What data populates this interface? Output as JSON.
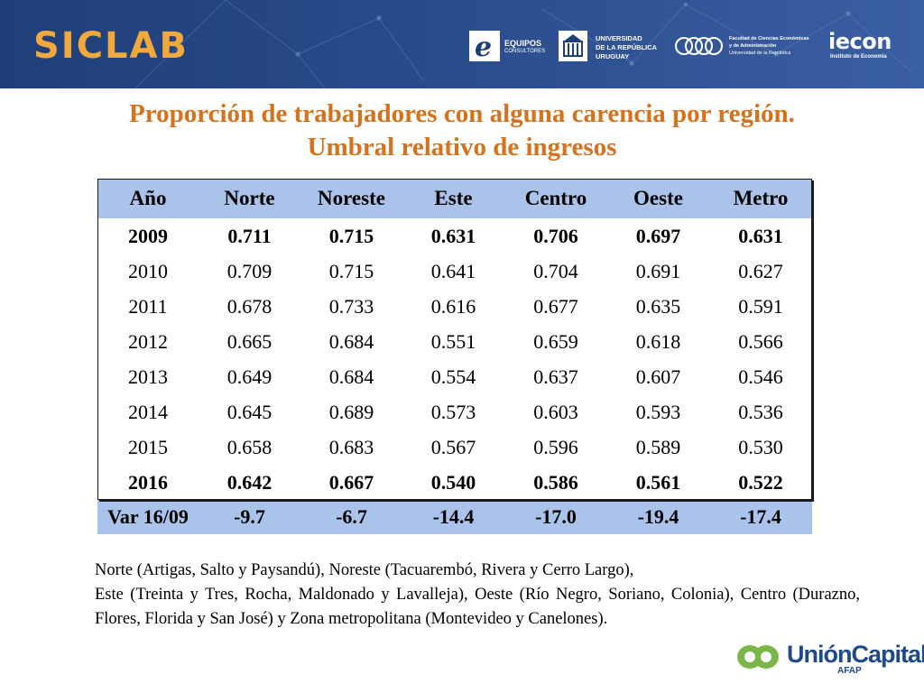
{
  "header": {
    "brand": "SICLAB",
    "logos": [
      {
        "icon": "equipos-logo-icon",
        "line1": "EQUIPOS",
        "line2": "CONSULTORES"
      },
      {
        "icon": "udelar-crest-icon",
        "line1": "UNIVERSIDAD",
        "line2": "DE LA REPÚBLICA",
        "line3": "URUGUAY"
      },
      {
        "icon": "fcea-circles-icon",
        "line1": "Facultad de Ciencias Económicas",
        "line2": "y de Administración",
        "line3": "Universidad de la República"
      },
      {
        "icon": "iecon-logo-icon",
        "line1": "iecon",
        "line2": "Instituto de Economía"
      }
    ]
  },
  "title": {
    "line1": "Proporción de trabajadores con alguna carencia por región.",
    "line2": "Umbral relativo de ingresos"
  },
  "table": {
    "columns": [
      "Año",
      "Norte",
      "Noreste",
      "Este",
      "Centro",
      "Oeste",
      "Metro"
    ],
    "rows": [
      [
        "2009",
        "0.711",
        "0.715",
        "0.631",
        "0.706",
        "0.697",
        "0.631"
      ],
      [
        "2010",
        "0.709",
        "0.715",
        "0.641",
        "0.704",
        "0.691",
        "0.627"
      ],
      [
        "2011",
        "0.678",
        "0.733",
        "0.616",
        "0.677",
        "0.635",
        "0.591"
      ],
      [
        "2012",
        "0.665",
        "0.684",
        "0.551",
        "0.659",
        "0.618",
        "0.566"
      ],
      [
        "2013",
        "0.649",
        "0.684",
        "0.554",
        "0.637",
        "0.607",
        "0.546"
      ],
      [
        "2014",
        "0.645",
        "0.689",
        "0.573",
        "0.603",
        "0.593",
        "0.536"
      ],
      [
        "2015",
        "0.658",
        "0.683",
        "0.567",
        "0.596",
        "0.589",
        "0.530"
      ],
      [
        "2016",
        "0.642",
        "0.667",
        "0.540",
        "0.586",
        "0.561",
        "0.522"
      ]
    ],
    "var_row": [
      "Var 16/09",
      "-9.7",
      "-6.7",
      "-14.4",
      "-17.0",
      "-19.4",
      "-17.4"
    ]
  },
  "note": {
    "line1": "Norte (Artigas, Salto y Paysandú), Noreste (Tacuarembó, Rivera y Cerro Largo),",
    "line2": "Este (Treinta y Tres, Rocha, Maldonado y Lavalleja), Oeste (Río Negro, Soriano, Colonia), Centro (Durazno, Flores, Florida y San José) y Zona metropolitana (Montevideo y Canelones)."
  },
  "footer_logo": {
    "icon": "union-capital-logo-icon",
    "name": "UniónCapital",
    "sub": "AFAP"
  },
  "colors": {
    "header_bg": "#294b8a",
    "brand": "#f2a93b",
    "title": "#d6721c",
    "table_header": "#a9c3ea",
    "uc_blue": "#1e4a8c",
    "uc_green": "#7ab648"
  }
}
